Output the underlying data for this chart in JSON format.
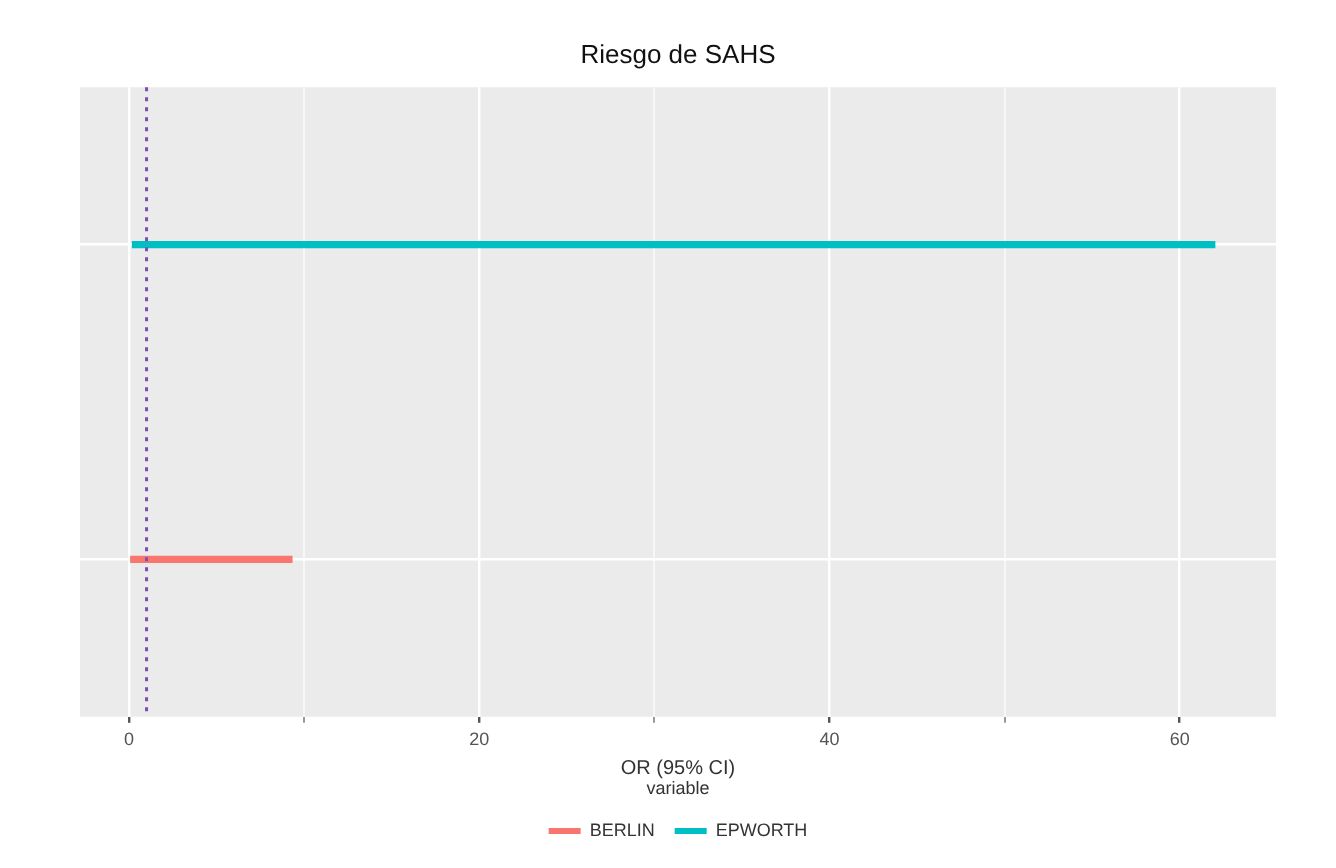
{
  "chart_data": {
    "type": "bar",
    "orientation": "horizontal",
    "title": "Riesgo de SAHS",
    "xlabel": "OR (95% CI)",
    "legend_title": "variable",
    "categories": [
      null,
      null
    ],
    "series": [
      {
        "name": "BERLIN",
        "color": "#f8766d",
        "base": [
          null,
          0.1
        ],
        "values": [
          null,
          9.2
        ]
      },
      {
        "name": "EPWORTH",
        "color": "#00bfc4",
        "base": [
          0.2,
          null
        ],
        "values": [
          61.8,
          null
        ]
      }
    ],
    "xlim": [
      -2.8,
      65.5
    ],
    "xticks": [
      0,
      {
        "value": 10,
        "label": null
      },
      20,
      {
        "value": 30,
        "label": null
      },
      40,
      {
        "value": 50,
        "label": null
      },
      60
    ],
    "ref_lines": [
      {
        "axis": "x",
        "value": 1,
        "color": "#7b4fb0",
        "line_style": "dotted"
      }
    ],
    "grid": true,
    "legend": "bottom"
  }
}
